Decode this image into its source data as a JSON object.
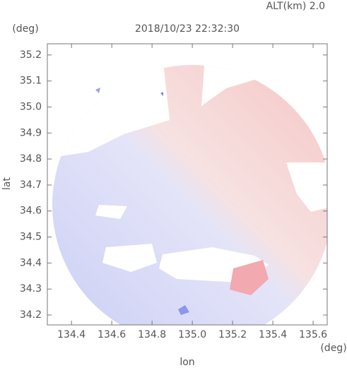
{
  "chart_data": {
    "type": "radar-map",
    "title": "2018/10/23 22:32:30",
    "subtitle": "ALT(km)  2.0",
    "ylabel": "lat",
    "xlabel": "lon",
    "y_unit": "(deg)",
    "x_unit": "(deg)",
    "xlim": [
      134.28,
      135.67
    ],
    "ylim": [
      34.162,
      35.243
    ],
    "xticks": [
      134.4,
      134.6,
      134.8,
      {
        "value": 135,
        "label": "135.0"
      },
      135.2,
      135.4,
      135.6
    ],
    "yticks": [
      34.2,
      34.3,
      34.4,
      34.5,
      34.6,
      34.7,
      34.8,
      34.9,
      {
        "value": 35,
        "label": "35.0"
      },
      35.1,
      35.2
    ]
  }
}
